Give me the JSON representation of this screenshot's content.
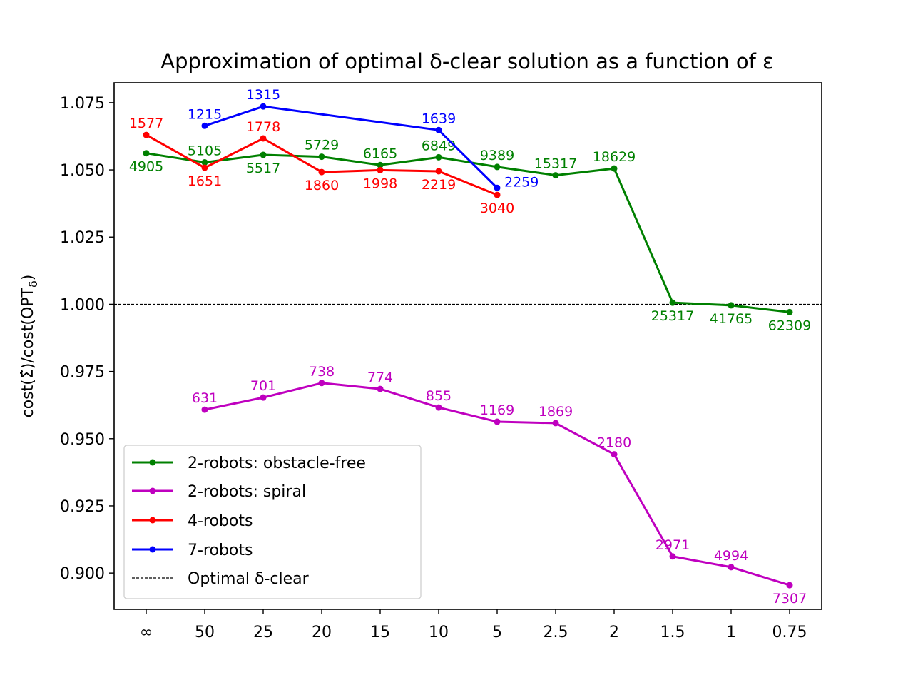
{
  "chart_data": {
    "type": "line",
    "title": "Approximation of optimal δ-clear solution as a function of ε",
    "xlabel": "",
    "ylabel": "cost(Σ̂)/cost(OPTδ)",
    "categories": [
      "∞",
      "50",
      "25",
      "20",
      "15",
      "10",
      "5",
      "2.5",
      "2",
      "1.5",
      "1",
      "0.75"
    ],
    "ylim": [
      0.8865,
      1.0824
    ],
    "yticks": [
      0.9,
      0.925,
      0.95,
      0.975,
      1.0,
      1.025,
      1.05,
      1.075
    ],
    "ytick_labels": [
      "0.900",
      "0.925",
      "0.950",
      "0.975",
      "1.000",
      "1.025",
      "1.050",
      "1.075"
    ],
    "grid": false,
    "legend_position": "lower-left",
    "reference_line": {
      "y": 1.0,
      "label": "Optimal δ-clear",
      "style": "dashed",
      "color": "#000000"
    },
    "series": [
      {
        "name": "2-robots: obstacle-free",
        "color": "#008000",
        "x": [
          0,
          1,
          2,
          3,
          4,
          5,
          6,
          7,
          8,
          9,
          10,
          11
        ],
        "values": [
          1.0562,
          1.0528,
          1.0556,
          1.0549,
          1.0518,
          1.0547,
          1.0511,
          1.048,
          1.0505,
          1.0006,
          0.9996,
          0.9971
        ],
        "labels": [
          "4905",
          "5105",
          "5517",
          "5729",
          "6165",
          "6849",
          "9389",
          "15317",
          "18629",
          "25317",
          "41765",
          "62309"
        ],
        "label_pos": [
          "below",
          "above",
          "below",
          "above",
          "above",
          "above",
          "above",
          "above",
          "above",
          "below",
          "below",
          "below"
        ]
      },
      {
        "name": "2-robots: spiral",
        "color": "#bf00bf",
        "x": [
          1,
          2,
          3,
          4,
          5,
          6,
          7,
          8,
          9,
          10,
          11
        ],
        "values": [
          0.9608,
          0.9653,
          0.9707,
          0.9685,
          0.9616,
          0.9563,
          0.9558,
          0.9442,
          0.9062,
          0.9022,
          0.8955
        ],
        "labels": [
          "631",
          "701",
          "738",
          "774",
          "855",
          "1169",
          "1869",
          "2180",
          "2971",
          "4994",
          "7307"
        ],
        "label_pos": [
          "above",
          "above",
          "above",
          "above",
          "above",
          "above",
          "above",
          "above",
          "above",
          "above",
          "below"
        ]
      },
      {
        "name": "4-robots",
        "color": "#ff0000",
        "x": [
          0,
          1,
          2,
          3,
          4,
          5,
          6
        ],
        "values": [
          1.063,
          1.0508,
          1.0617,
          1.0492,
          1.0499,
          1.0495,
          1.0407
        ],
        "labels": [
          "1577",
          "1651",
          "1778",
          "1860",
          "1998",
          "2219",
          "3040"
        ],
        "label_pos": [
          "above",
          "below",
          "above",
          "below",
          "below",
          "below",
          "below"
        ]
      },
      {
        "name": "7-robots",
        "color": "#0000ff",
        "x": [
          1,
          2,
          5,
          6
        ],
        "values": [
          1.0664,
          1.0736,
          1.0648,
          1.0433
        ],
        "labels": [
          "1215",
          "1315",
          "1639",
          "2259"
        ],
        "label_pos": [
          "above",
          "above",
          "above",
          "right"
        ]
      }
    ]
  }
}
